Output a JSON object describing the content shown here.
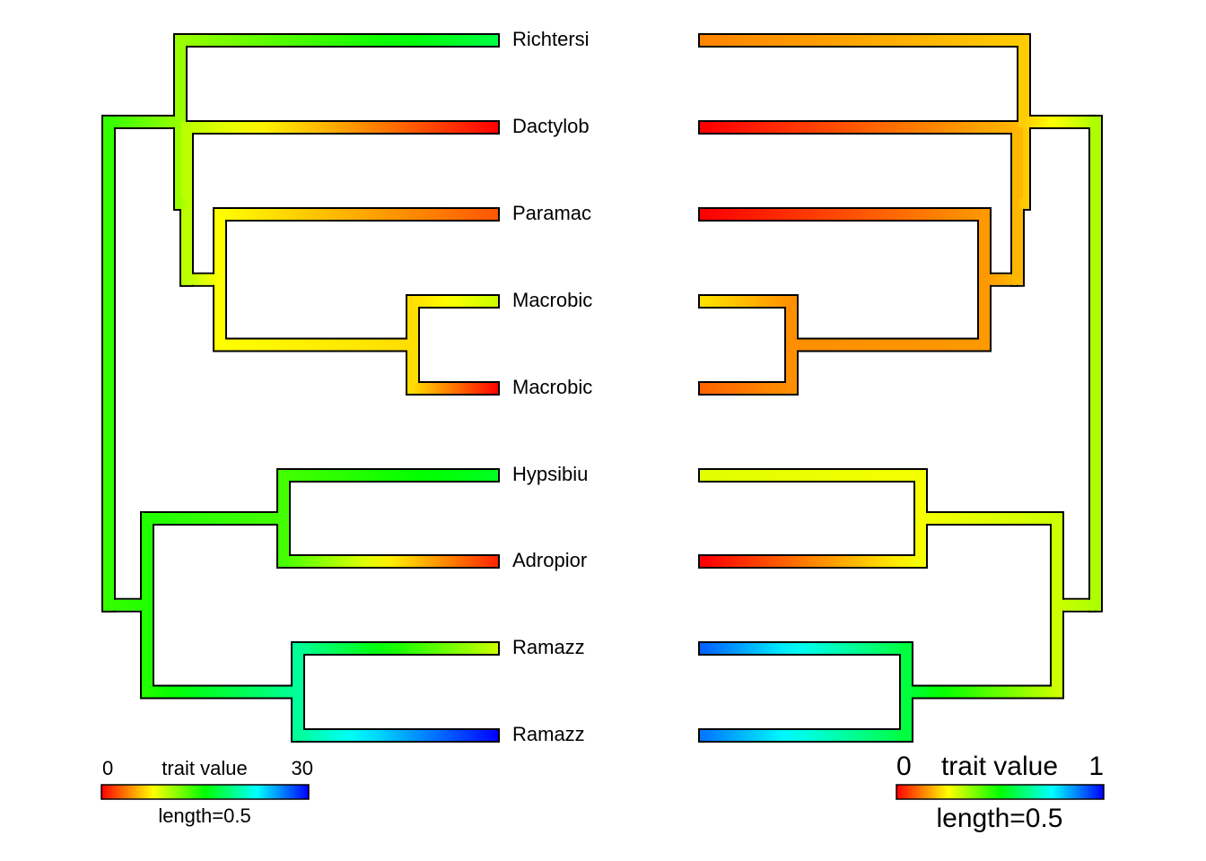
{
  "taxa": [
    "Richtersi",
    "Dactylob",
    "Paramac",
    "Macrobic",
    "Macrobic",
    "Hypsibiu",
    "Adropior",
    "Ramazz",
    "Ramazz"
  ],
  "left_legend": {
    "min_label": "0",
    "title": "trait value",
    "max_label": "30",
    "length_label": "length=0.5",
    "min_value": 0,
    "max_value": 30
  },
  "right_legend": {
    "min_label": "0",
    "title": "trait value",
    "max_label": "1",
    "length_label": "length=0.5",
    "min_value": 0,
    "max_value": 1
  },
  "colors": {
    "scale": [
      "#ff0000",
      "#ffff00",
      "#00ff00",
      "#00ffff",
      "#0000ff"
    ],
    "outline": "#000000"
  },
  "tree": {
    "left_trait_values": {
      "root": 13.5,
      "A": 10.5,
      "B": 9.5,
      "C": 7.5,
      "D": 6.5,
      "E": 14.0,
      "F": 13.0,
      "G": 19.5,
      "t1": 17.0,
      "t2": 0.0,
      "t3": 2.5,
      "t4": 9.0,
      "t5": 0.0,
      "t6": 16.0,
      "t7": 1.0,
      "t8": 9.0,
      "t9": 30.0
    },
    "right_trait_values": {
      "root": 0.33,
      "A": 0.2,
      "B": 0.18,
      "C": 0.15,
      "D": 0.14,
      "E": 0.3,
      "F": 0.26,
      "G": 0.56,
      "t1": 0.13,
      "t2": 0.0,
      "t3": 0.0,
      "t4": 0.22,
      "t5": 0.1,
      "t6": 0.28,
      "t7": 0.0,
      "t8": 0.9,
      "t9": 0.88
    }
  }
}
